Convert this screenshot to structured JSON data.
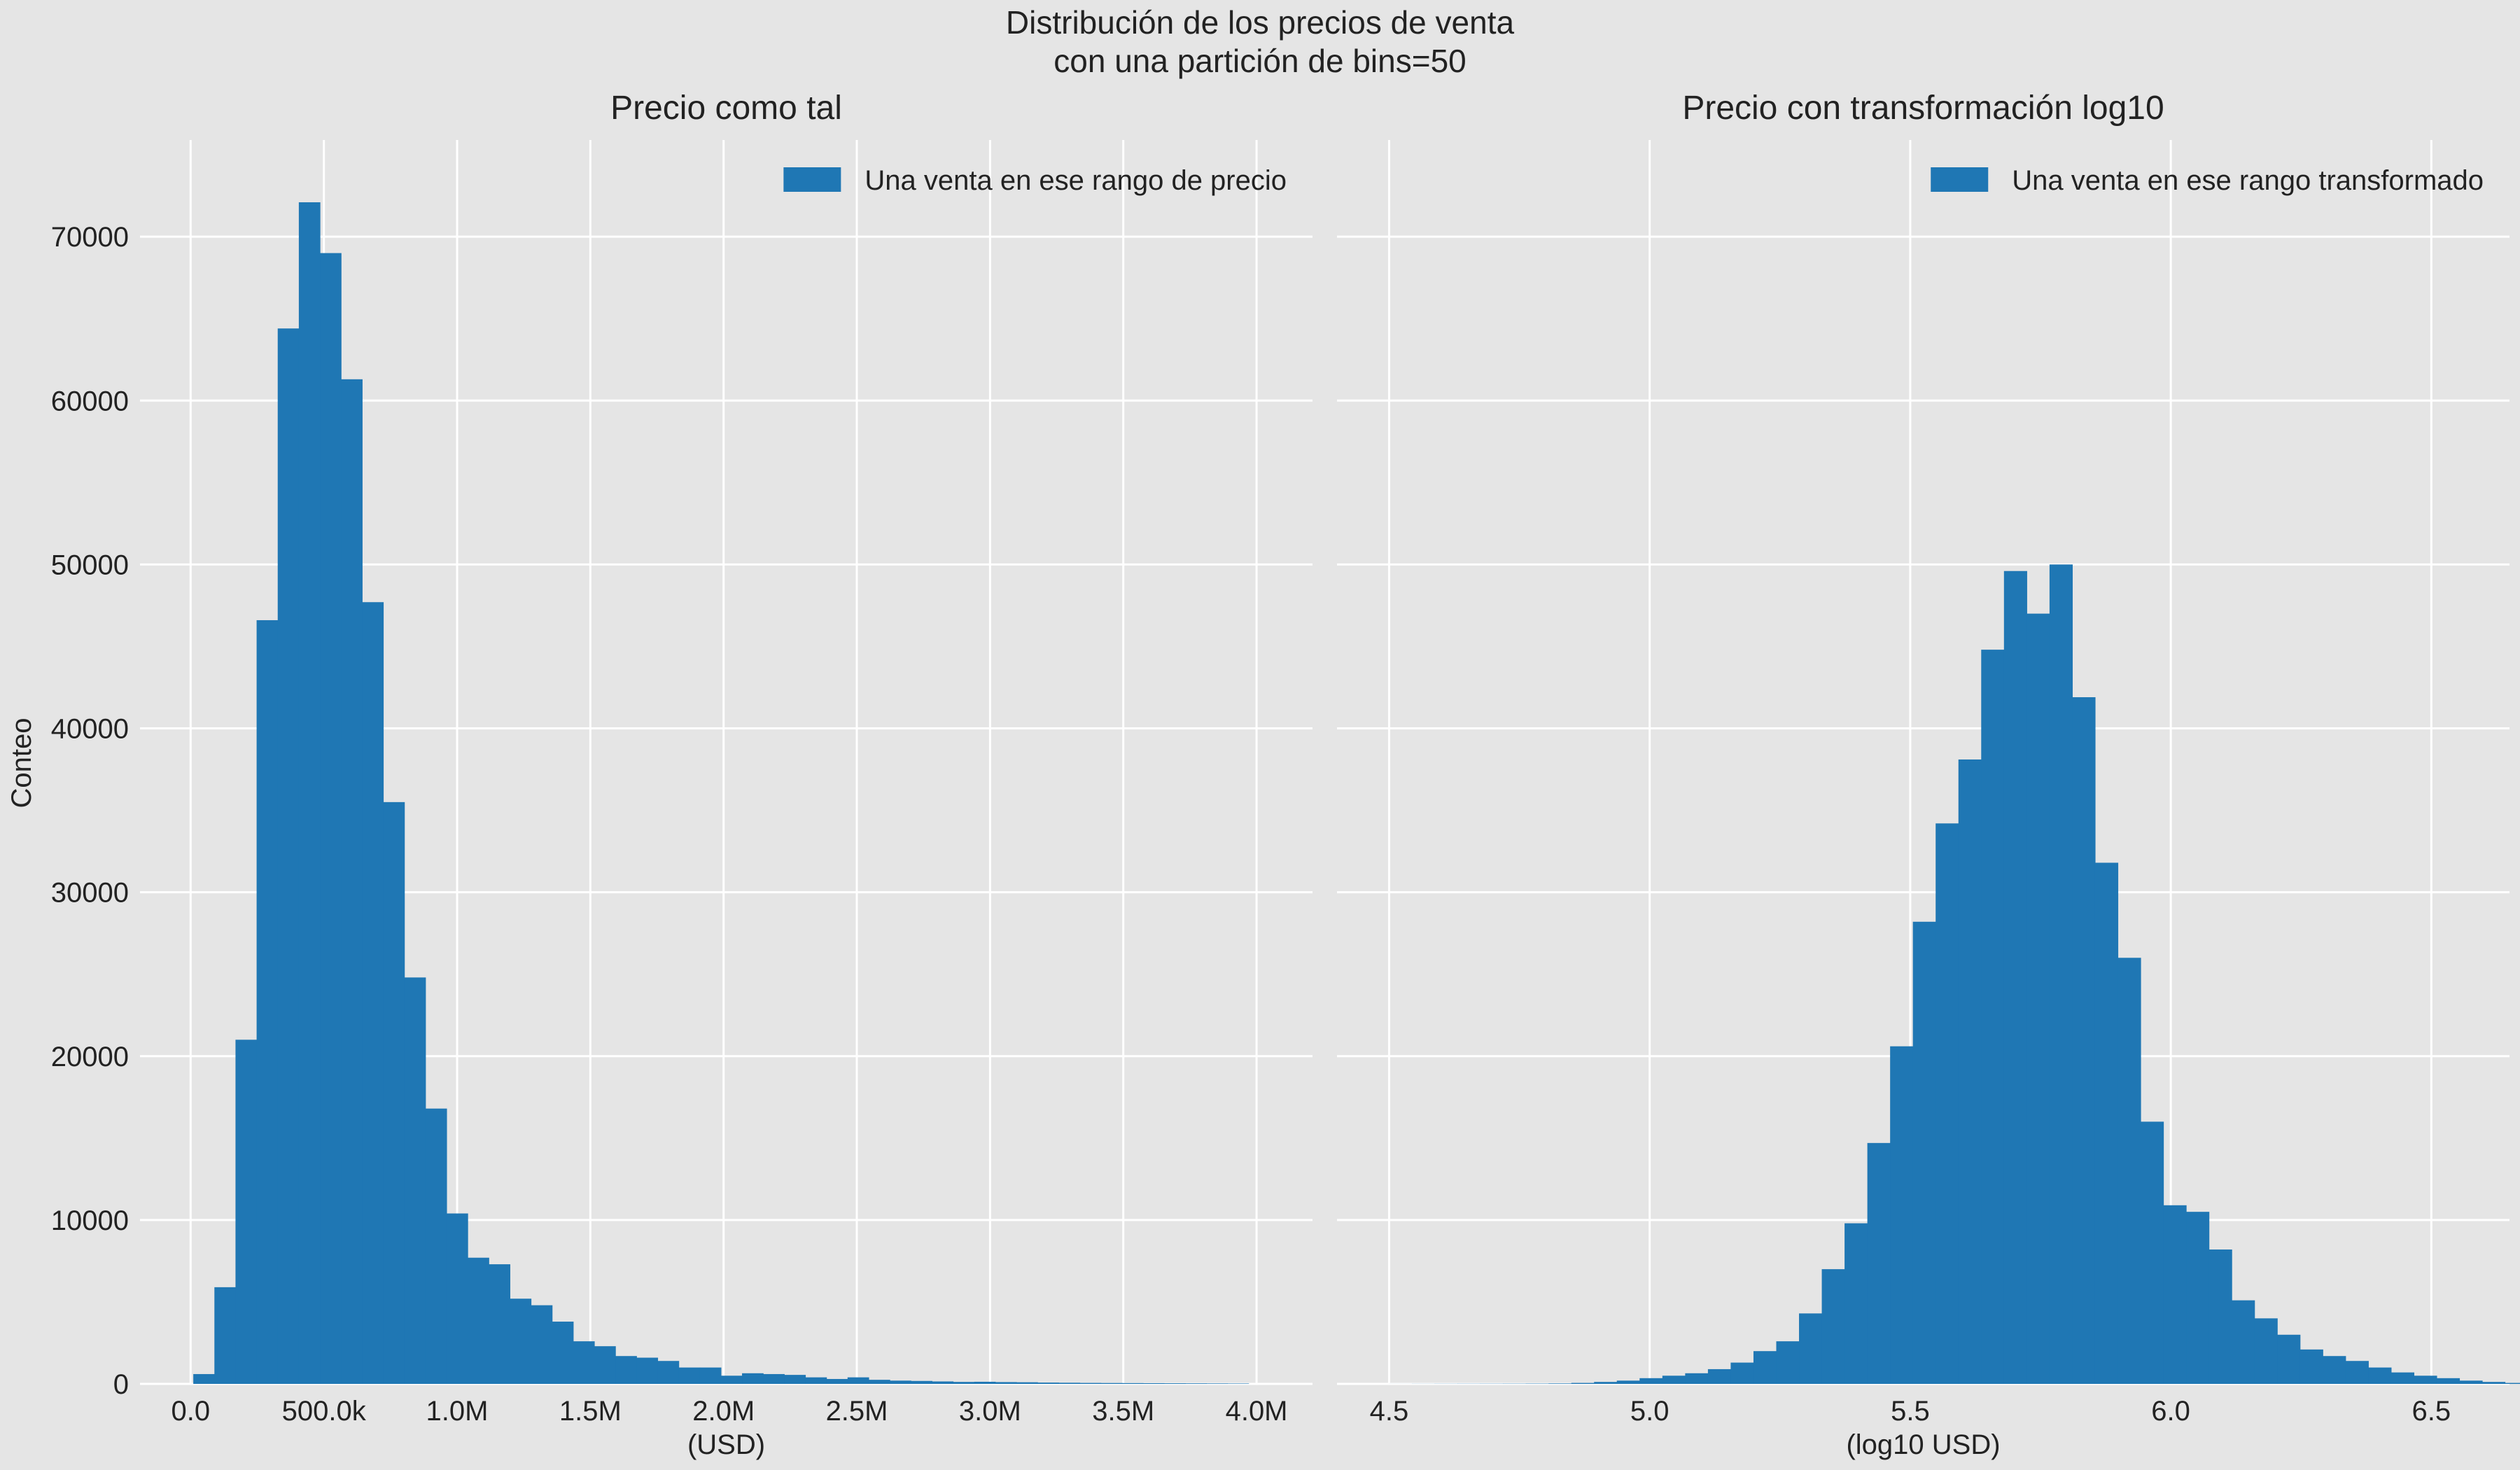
{
  "figure": {
    "title_line1": "Distribución de los precios de venta",
    "title_line2": "con una partición de bins=50",
    "ylabel": "Conteo",
    "background": "#e5e5e5",
    "grid_color": "#ffffff",
    "bar_color": "#1f77b4"
  },
  "chart_data": [
    {
      "type": "bar",
      "histogram": true,
      "title": "Precio como tal",
      "xlabel": "(USD)",
      "ylabel": "Conteo",
      "legend": "Una venta en ese rango de precio",
      "legend_position": "top-right",
      "grid": true,
      "xlim": [
        -190000,
        4210000
      ],
      "ylim": [
        0,
        75900
      ],
      "xticks": [
        0,
        500000,
        1000000,
        1500000,
        2000000,
        2500000,
        3000000,
        3500000,
        4000000
      ],
      "xtick_labels": [
        "0.0",
        "500.0k",
        "1.0M",
        "1.5M",
        "2.0M",
        "2.5M",
        "3.0M",
        "3.5M",
        "4.0M"
      ],
      "yticks": [
        0,
        10000,
        20000,
        30000,
        40000,
        50000,
        60000,
        70000
      ],
      "ytick_labels": [
        "0",
        "10000",
        "20000",
        "30000",
        "40000",
        "50000",
        "60000",
        "70000"
      ],
      "bin_edges": [
        10000,
        89200,
        168400,
        247600,
        326800,
        406000,
        485200,
        564400,
        643600,
        722800,
        802000,
        881200,
        960400,
        1039600,
        1118800,
        1198000,
        1277200,
        1356400,
        1435600,
        1514800,
        1594000,
        1673200,
        1752400,
        1831600,
        1910800,
        1990000,
        2069200,
        2148400,
        2227600,
        2306800,
        2386000,
        2465200,
        2544400,
        2623600,
        2702800,
        2782000,
        2861200,
        2940400,
        3019600,
        3098800,
        3178000,
        3257200,
        3336400,
        3415600,
        3494800,
        3574000,
        3653200,
        3732400,
        3811600,
        3890800,
        3970000
      ],
      "values": [
        600,
        5900,
        21000,
        46600,
        64400,
        72100,
        69000,
        61300,
        47700,
        35500,
        24800,
        16800,
        10400,
        7700,
        7300,
        5200,
        4800,
        3800,
        2600,
        2300,
        1700,
        1600,
        1400,
        1000,
        1000,
        500,
        650,
        600,
        550,
        400,
        300,
        400,
        250,
        200,
        180,
        150,
        120,
        130,
        110,
        100,
        80,
        70,
        60,
        55,
        50,
        45,
        40,
        35,
        30,
        25
      ]
    },
    {
      "type": "bar",
      "histogram": true,
      "title": "Precio con transformación log10",
      "xlabel": "(log10 USD)",
      "ylabel": "",
      "legend": "Una venta en ese rango transformado",
      "legend_position": "top-right",
      "grid": true,
      "xlim": [
        4.4,
        6.65
      ],
      "ylim": [
        0,
        75900
      ],
      "xticks": [
        4.5,
        5.0,
        5.5,
        6.0,
        6.5
      ],
      "xtick_labels": [
        "4.5",
        "5.0",
        "5.5",
        "6.0",
        "6.5"
      ],
      "yticks": [
        0,
        10000,
        20000,
        30000,
        40000,
        50000,
        60000,
        70000
      ],
      "ytick_labels": [],
      "bin_edges": [
        4.5,
        4.5437,
        4.5874,
        4.6311,
        4.6748,
        4.7185,
        4.7622,
        4.8059,
        4.8496,
        4.8933,
        4.937,
        4.9807,
        5.0244,
        5.0681,
        5.1118,
        5.1555,
        5.1992,
        5.2429,
        5.2866,
        5.3303,
        5.374,
        5.4177,
        5.4614,
        5.5051,
        5.5488,
        5.5925,
        5.6362,
        5.6799,
        5.7236,
        5.7673,
        5.811,
        5.8547,
        5.8984,
        5.9421,
        5.9858,
        6.0295,
        6.0732,
        6.1169,
        6.1606,
        6.2043,
        6.248,
        6.2917,
        6.3354,
        6.3791,
        6.4228,
        6.4665,
        6.5102,
        6.5539,
        6.5976,
        6.6413,
        6.685
      ],
      "values": [
        2,
        5,
        8,
        10,
        12,
        15,
        20,
        30,
        60,
        120,
        200,
        350,
        500,
        650,
        900,
        1300,
        2000,
        2600,
        4300,
        7000,
        9800,
        14700,
        20600,
        28200,
        34200,
        38100,
        44800,
        49600,
        47000,
        50000,
        41900,
        31800,
        26000,
        16000,
        10900,
        10500,
        8200,
        5100,
        4000,
        3000,
        2100,
        1700,
        1400,
        1000,
        700,
        500,
        350,
        200,
        120,
        60
      ]
    }
  ]
}
